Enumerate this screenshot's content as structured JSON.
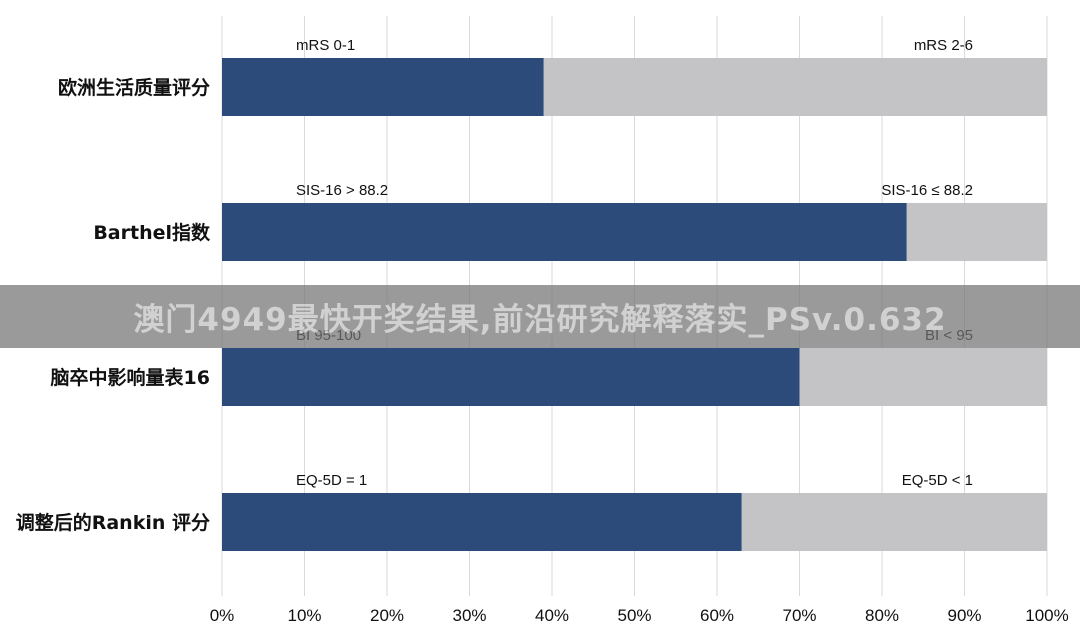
{
  "chart_data": {
    "type": "bar",
    "orientation": "horizontal",
    "stacked": true,
    "categories": [
      "欧洲生活质量评分",
      "Barthel指数",
      "脑卒中影响量表16",
      "调整后的Rankin 评分"
    ],
    "series": [
      {
        "color": "#2c4a7a",
        "values": [
          39,
          83,
          70,
          63
        ],
        "segment_labels": [
          "mRS 0-1",
          "SIS-16 > 88.2",
          "BI 95-100",
          "EQ-5D = 1"
        ]
      },
      {
        "color": "#c4c4c6",
        "values": [
          61,
          17,
          30,
          37
        ],
        "segment_labels": [
          "mRS 2-6",
          "SIS-16 ≤ 88.2",
          "BI < 95",
          "EQ-5D < 1"
        ]
      }
    ],
    "x_ticks": [
      "0%",
      "10%",
      "20%",
      "30%",
      "40%",
      "50%",
      "60%",
      "70%",
      "80%",
      "90%",
      "100%"
    ],
    "xlim": [
      0,
      100
    ],
    "grid": "vertical"
  },
  "watermark": {
    "text": "澳门4949最快开奖结果,前沿研究解释落实_PSv.0.632"
  }
}
